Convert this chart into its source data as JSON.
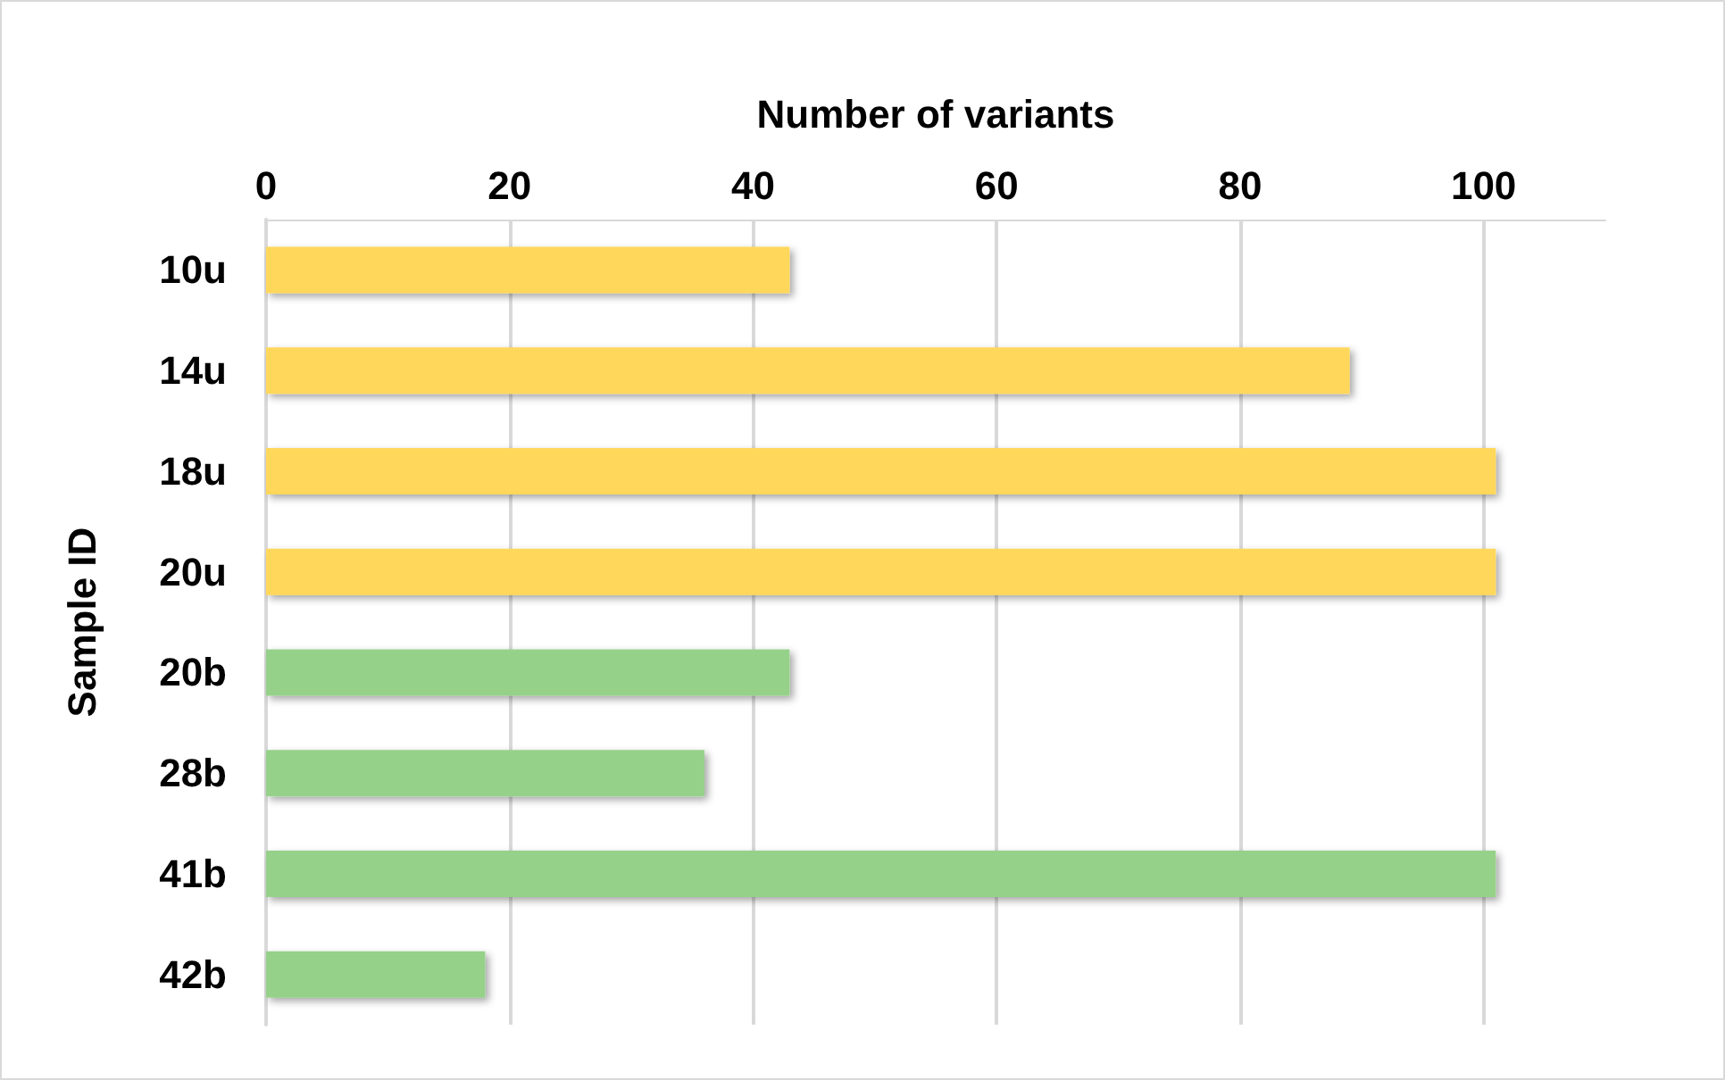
{
  "chart_data": {
    "type": "bar",
    "orientation": "horizontal",
    "xlabel": "Number of variants",
    "ylabel": "Sample ID",
    "categories": [
      "10u",
      "14u",
      "18u",
      "20u",
      "20b",
      "28b",
      "41b",
      "42b"
    ],
    "values": [
      43,
      89,
      101,
      101,
      43,
      36,
      101,
      18
    ],
    "colors": [
      "#ffd75a",
      "#ffd75a",
      "#ffd75a",
      "#ffd75a",
      "#96d18a",
      "#96d18a",
      "#96d18a",
      "#96d18a"
    ],
    "xlim": [
      0,
      110
    ],
    "xticks": [
      0,
      20,
      40,
      60,
      80,
      100
    ],
    "grid": "x"
  }
}
